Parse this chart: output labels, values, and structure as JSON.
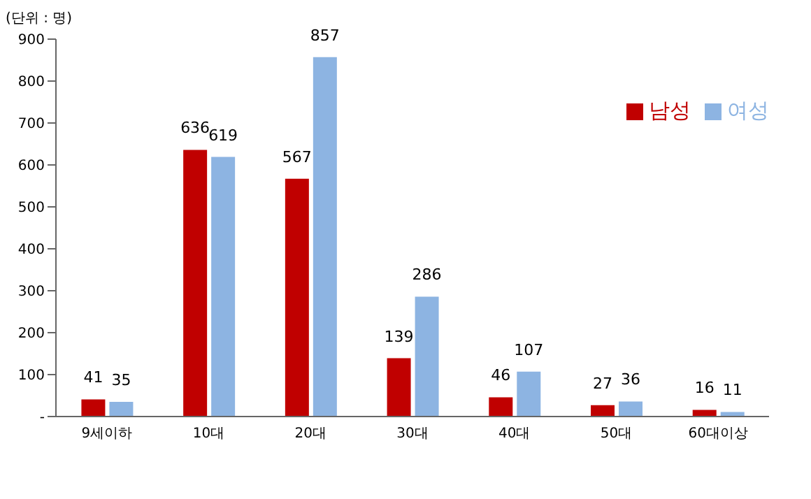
{
  "chart_data": {
    "type": "bar",
    "categories": [
      "9세이하",
      "10대",
      "20대",
      "30대",
      "40대",
      "50대",
      "60대이상"
    ],
    "series": [
      {
        "name": "남성",
        "color": "#c00000",
        "values": [
          41,
          636,
          567,
          139,
          46,
          27,
          16
        ]
      },
      {
        "name": "여성",
        "color": "#8db4e2",
        "values": [
          35,
          619,
          857,
          286,
          107,
          36,
          11
        ]
      }
    ],
    "ylim": [
      0,
      900
    ],
    "yticks": [
      {
        "value": 0,
        "label": "-"
      },
      100,
      200,
      300,
      400,
      500,
      600,
      700,
      800,
      900
    ],
    "annotations": [
      "(단위 : 명)"
    ],
    "data_labels": true,
    "legend": "right",
    "grid": false
  }
}
